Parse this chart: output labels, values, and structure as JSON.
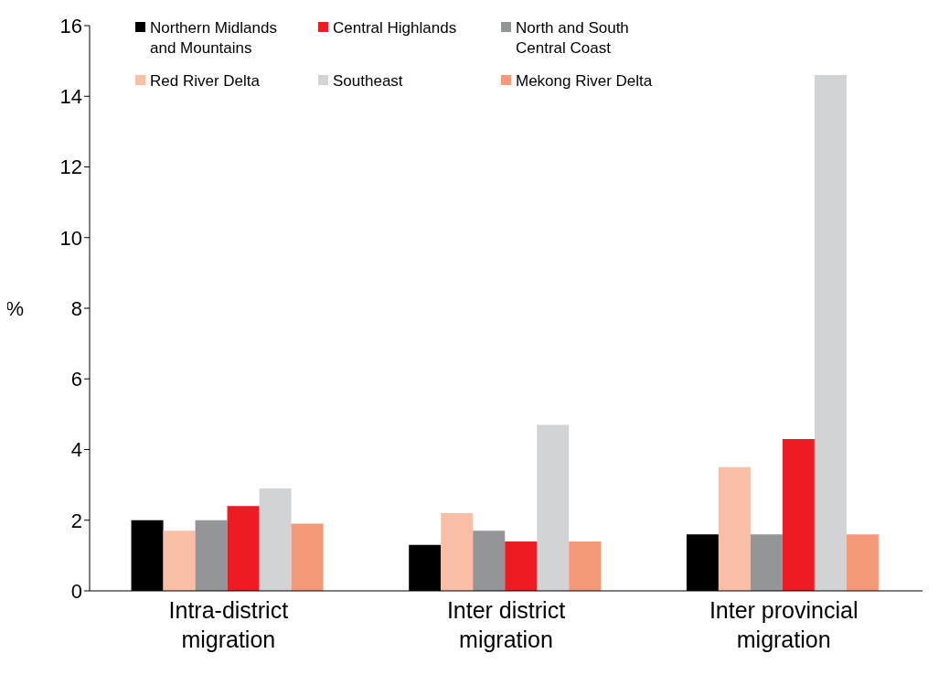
{
  "chart_data": {
    "type": "bar",
    "ylabel": "%",
    "categories": [
      "Intra-district migration",
      "Inter district migration",
      "Inter provincial migration"
    ],
    "series": [
      {
        "name": "Northern Midlands and Mountains",
        "color": "#000000",
        "values": [
          2.0,
          1.3,
          1.6
        ]
      },
      {
        "name": "Red River Delta",
        "color": "#f9bfa6",
        "values": [
          1.7,
          2.2,
          3.5
        ]
      },
      {
        "name": "North and South Central Coast",
        "color": "#939598",
        "values": [
          2.0,
          1.7,
          1.6
        ]
      },
      {
        "name": "Central Highlands",
        "color": "#ed1c24",
        "values": [
          2.4,
          1.4,
          4.3
        ]
      },
      {
        "name": "Southeast",
        "color": "#d1d3d4",
        "values": [
          2.9,
          4.7,
          14.6
        ]
      },
      {
        "name": "Mekong River Delta",
        "color": "#f4997a",
        "values": [
          1.9,
          1.4,
          1.6
        ]
      }
    ],
    "ylim": [
      0,
      16
    ],
    "yticks": [
      0,
      2,
      4,
      6,
      8,
      10,
      12,
      14,
      16
    ],
    "grid": false,
    "legend": "top"
  }
}
